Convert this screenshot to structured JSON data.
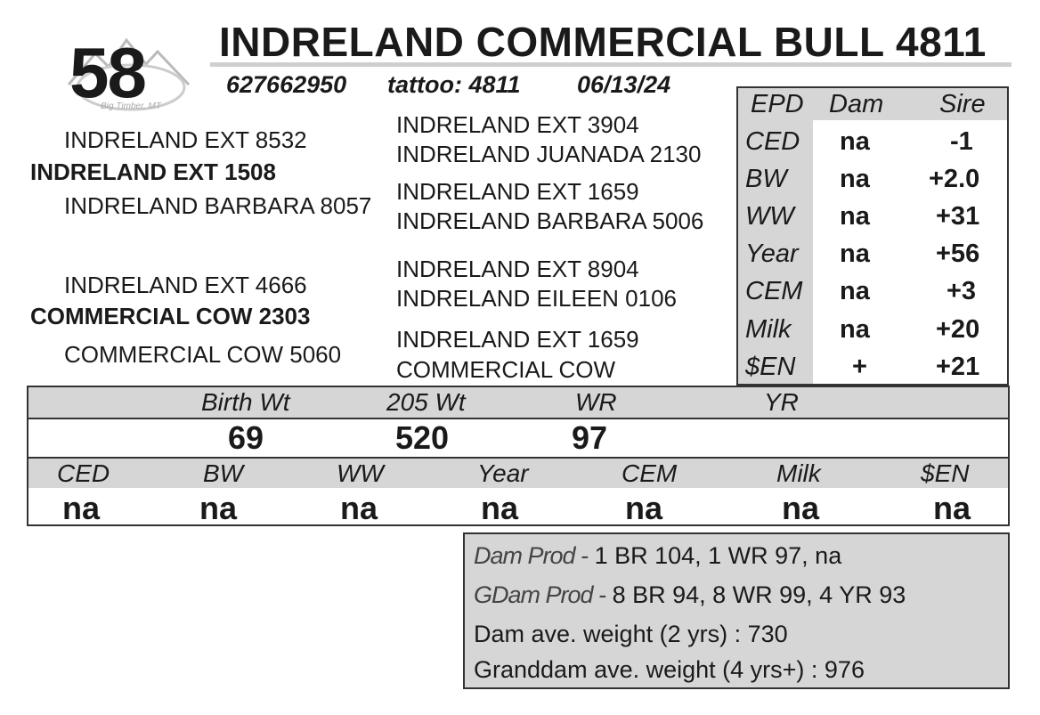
{
  "lot_number": "58",
  "title": "INDRELAND COMMERCIAL BULL 4811",
  "registration": "627662950",
  "tattoo": "tattoo: 4811",
  "birth_date": "06/13/24",
  "pedigree": {
    "sire": {
      "sire": "INDRELAND EXT 8532",
      "name": "INDRELAND EXT 1508",
      "dam": "INDRELAND BARBARA 8057"
    },
    "dam": {
      "sire": "INDRELAND EXT 4666",
      "name": "COMMERCIAL COW 2303",
      "dam": "COMMERCIAL COW 5060"
    },
    "great_grand": [
      "INDRELAND EXT 3904",
      "INDRELAND JUANADA 2130",
      "INDRELAND EXT 1659",
      "INDRELAND BARBARA 5006",
      "INDRELAND EXT 8904",
      "INDRELAND EILEEN 0106",
      "INDRELAND EXT 1659",
      "COMMERCIAL COW"
    ]
  },
  "epd_table": {
    "headers": [
      "EPD",
      "Dam",
      "Sire"
    ],
    "rows": [
      {
        "trait": "CED",
        "dam": "na",
        "sire": "-1"
      },
      {
        "trait": "BW",
        "dam": "na",
        "sire": "+2.0"
      },
      {
        "trait": "WW",
        "dam": "na",
        "sire": "+31"
      },
      {
        "trait": "Year",
        "dam": "na",
        "sire": "+56"
      },
      {
        "trait": "CEM",
        "dam": "na",
        "sire": "+3"
      },
      {
        "trait": "Milk",
        "dam": "na",
        "sire": "+20"
      },
      {
        "trait": "$EN",
        "dam": "+",
        "sire": "+21"
      }
    ]
  },
  "performance": {
    "headers": [
      "Birth Wt",
      "205 Wt",
      "WR",
      "YR"
    ],
    "values": [
      "69",
      "520",
      "97",
      ""
    ]
  },
  "calf_epds": {
    "headers": [
      "CED",
      "BW",
      "WW",
      "Year",
      "CEM",
      "Milk",
      "$EN"
    ],
    "values": [
      "na",
      "na",
      "na",
      "na",
      "na",
      "na",
      "na"
    ]
  },
  "production": {
    "dam_prod_label": "Dam Prod -",
    "dam_prod_value": "1 BR 104, 1 WR 97, na",
    "gdam_prod_label": "GDam Prod -",
    "gdam_prod_value": "8 BR 94, 8 WR 99, 4 YR 93",
    "dam_weight": "Dam ave. weight (2 yrs) : 730",
    "granddam_weight": "Granddam ave. weight (4 yrs+) : 976"
  },
  "logo_text": "Big Timber, MT"
}
